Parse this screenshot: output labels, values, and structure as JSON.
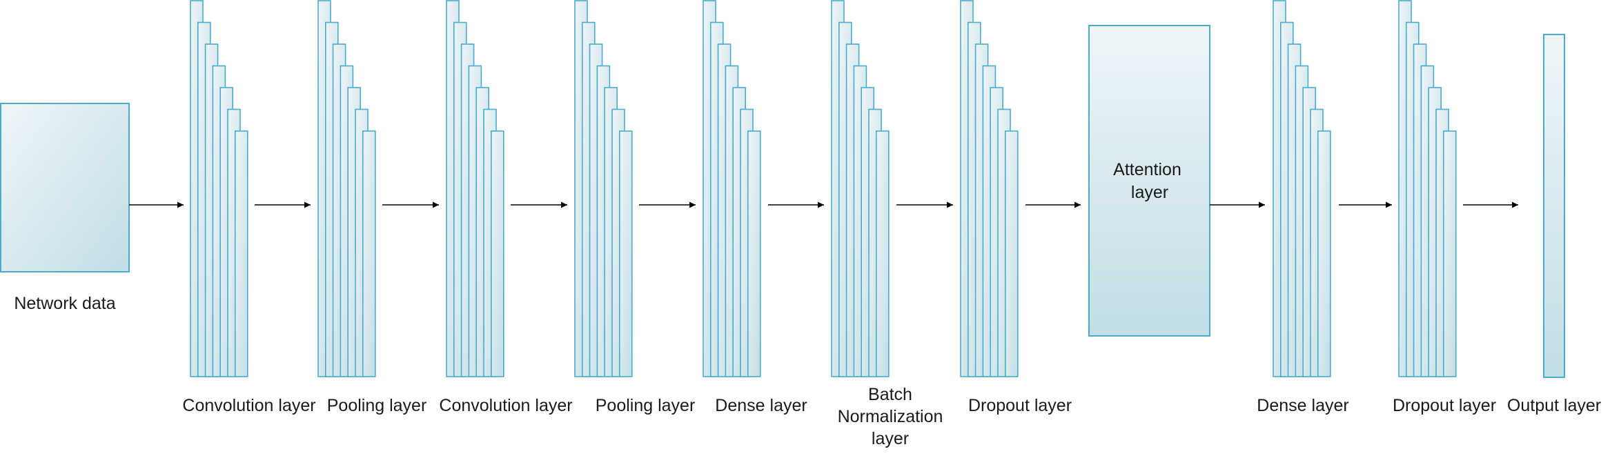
{
  "colors": {
    "stroke": "#4aaccc",
    "fill_light": "#eef5f8",
    "fill_dark": "#c3dee6",
    "arrow": "#000000",
    "text": "#1a1a1a"
  },
  "input": {
    "label": "Network data"
  },
  "attention": {
    "label_lines": [
      "Attention",
      "layer"
    ]
  },
  "output": {
    "label": "Output layer"
  },
  "layers": [
    {
      "label_lines": [
        "Convolution layer"
      ]
    },
    {
      "label_lines": [
        "Pooling layer"
      ]
    },
    {
      "label_lines": [
        "Convolution layer"
      ]
    },
    {
      "label_lines": [
        "Pooling layer"
      ]
    },
    {
      "label_lines": [
        "Dense layer"
      ]
    },
    {
      "label_lines": [
        "Batch",
        "Normalization",
        "layer"
      ]
    },
    {
      "label_lines": [
        "Dropout layer"
      ]
    },
    {
      "label_lines": [
        "Dense layer"
      ]
    },
    {
      "label_lines": [
        "Dropout layer"
      ]
    }
  ]
}
